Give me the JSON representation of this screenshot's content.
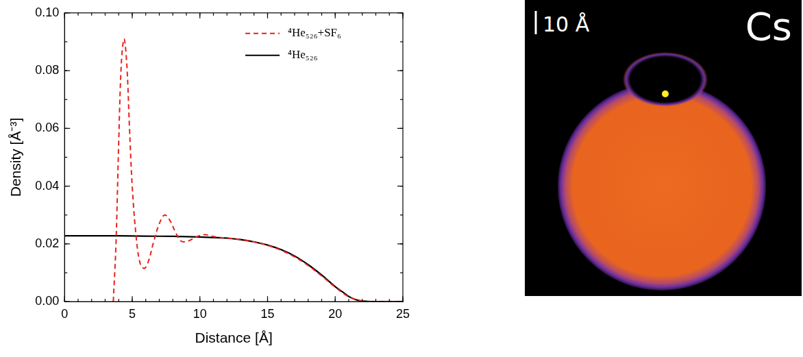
{
  "chart_data": {
    "type": "line",
    "x_label": "Distance [Å]",
    "y_label": "Density [Å⁻³]",
    "xlim": [
      0,
      25
    ],
    "xticks": [
      0,
      5,
      10,
      15,
      20,
      25
    ],
    "ylim": [
      0,
      0.1
    ],
    "yticks": [
      {
        "value": 0,
        "label": "0.00"
      },
      0.02,
      0.04,
      0.06,
      0.08,
      {
        "value": 0.1,
        "label": "0.10"
      }
    ],
    "grid": false,
    "legend": "upper right",
    "series": [
      {
        "name": "⁴He₅₂₆+SF₆",
        "color": "#e8201c",
        "line_style": "dashed",
        "marker": "none",
        "x": [
          3.6,
          3.8,
          4.0,
          4.2,
          4.4,
          4.6,
          4.8,
          5.0,
          5.3,
          5.6,
          5.9,
          6.2,
          6.6,
          7.0,
          7.4,
          7.8,
          8.2,
          8.6,
          9.0,
          9.5,
          10.0,
          10.4,
          10.8,
          11.2,
          12,
          13,
          14,
          15,
          16,
          17,
          18,
          19,
          20,
          21,
          22,
          23,
          25
        ],
        "values": [
          0,
          0.02,
          0.055,
          0.083,
          0.091,
          0.082,
          0.06,
          0.04,
          0.022,
          0.013,
          0.0115,
          0.014,
          0.021,
          0.027,
          0.03,
          0.028,
          0.024,
          0.021,
          0.0208,
          0.0218,
          0.0229,
          0.0232,
          0.0228,
          0.0224,
          0.022,
          0.0215,
          0.0207,
          0.0195,
          0.0178,
          0.0155,
          0.0125,
          0.0089,
          0.005,
          0.0017,
          0.0002,
          0,
          0
        ]
      },
      {
        "name": "⁴He₅₂₆",
        "color": "#000000",
        "line_style": "solid",
        "marker": "none",
        "x": [
          0,
          2,
          4,
          6,
          8,
          10,
          11,
          12,
          13,
          14,
          15,
          16,
          17,
          18,
          19,
          20,
          20.5,
          21,
          21.5,
          22,
          23,
          25
        ],
        "values": [
          0.0228,
          0.0228,
          0.0228,
          0.0227,
          0.0226,
          0.0224,
          0.0222,
          0.022,
          0.0215,
          0.0207,
          0.0196,
          0.018,
          0.0158,
          0.0128,
          0.0092,
          0.0052,
          0.0035,
          0.0018,
          0.0007,
          0.0002,
          0,
          0
        ]
      }
    ]
  },
  "image": {
    "scale_label": "10 Å",
    "atom": "Cs"
  }
}
